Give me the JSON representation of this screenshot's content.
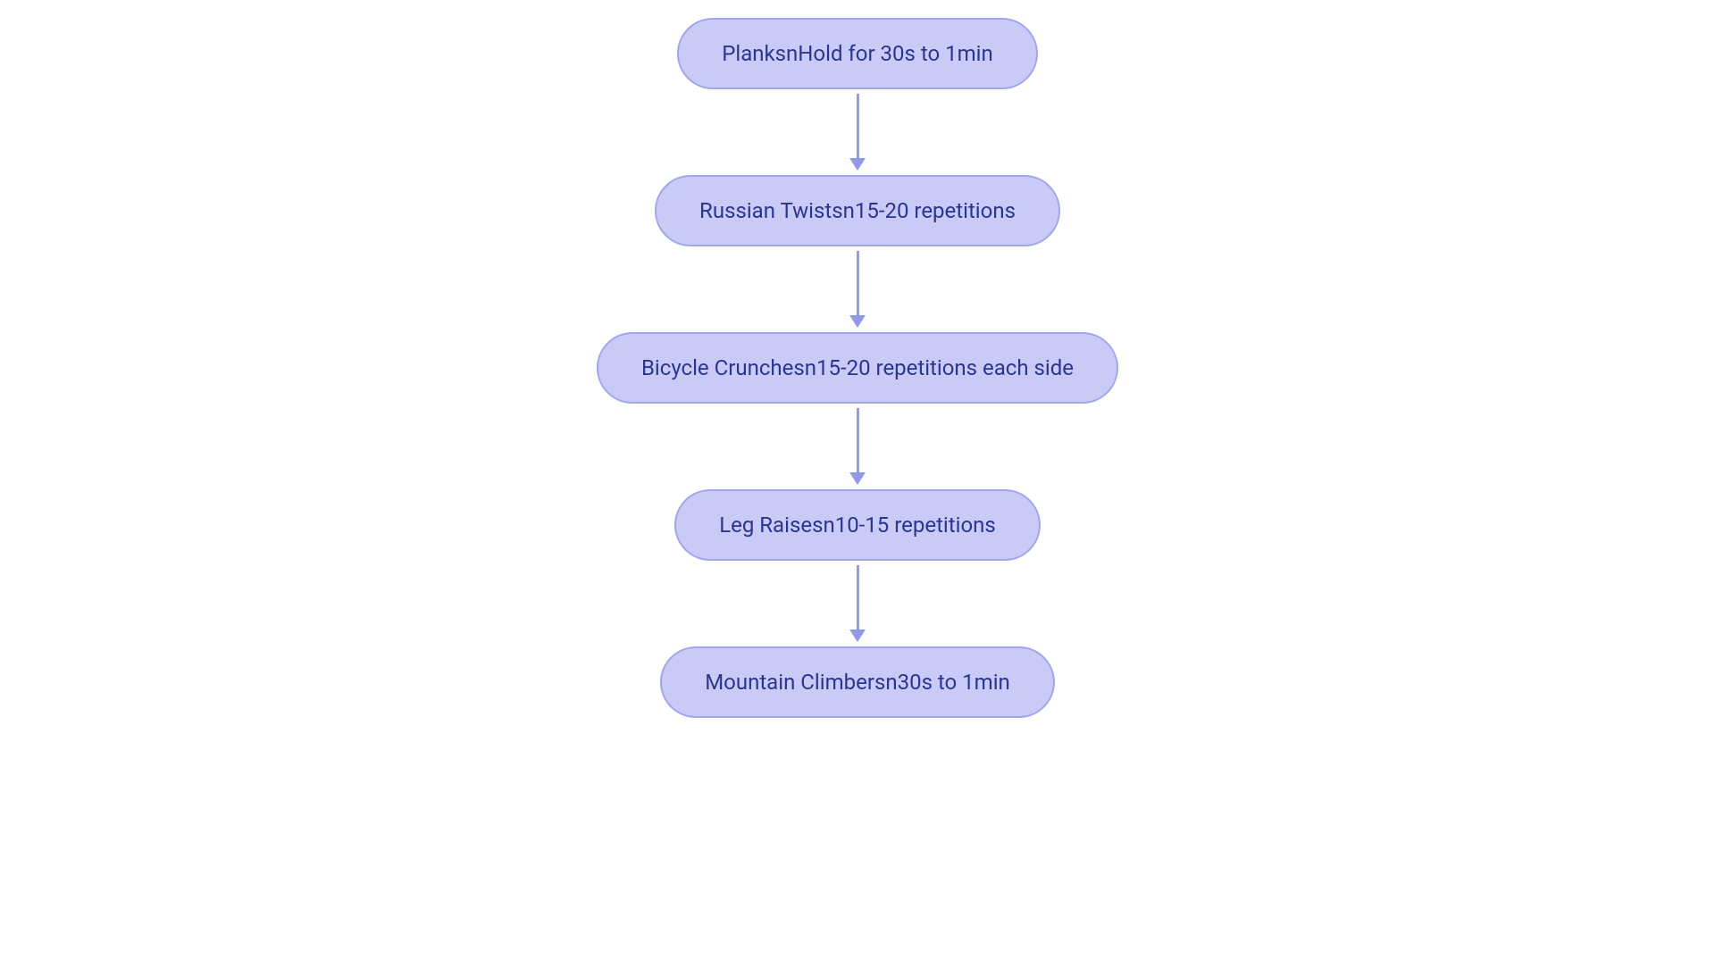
{
  "flowchart": {
    "type": "flowchart",
    "background_color": "#ffffff",
    "node_fill": "#c9cbf6",
    "node_border": "#a0a5ee",
    "node_border_width": 2,
    "text_color": "#2b3590",
    "node_fontsize": 24,
    "arrow_color": "#9498e8",
    "arrow_width": 3,
    "node_border_radius": 999,
    "nodes": [
      {
        "id": "n1",
        "label": "PlanksnHold for 30s to 1min"
      },
      {
        "id": "n2",
        "label": "Russian Twistsn15-20 repetitions"
      },
      {
        "id": "n3",
        "label": "Bicycle Crunchesn15-20 repetitions each side"
      },
      {
        "id": "n4",
        "label": "Leg Raisesn10-15 repetitions"
      },
      {
        "id": "n5",
        "label": "Mountain Climbersn30s to 1min"
      }
    ],
    "edges": [
      {
        "from": "n1",
        "to": "n2"
      },
      {
        "from": "n2",
        "to": "n3"
      },
      {
        "from": "n3",
        "to": "n4"
      },
      {
        "from": "n4",
        "to": "n5"
      }
    ]
  }
}
